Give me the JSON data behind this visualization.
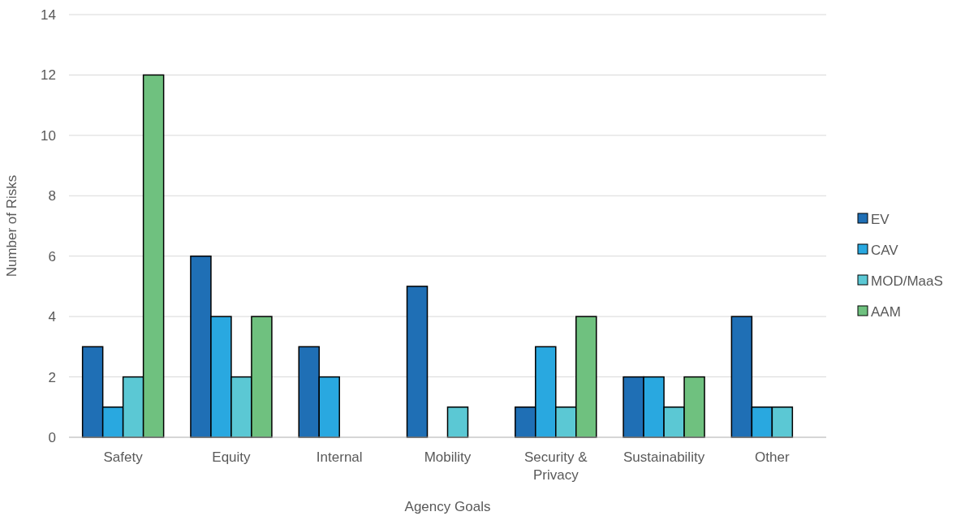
{
  "chart_data": {
    "type": "bar",
    "xlabel": "Agency Goals",
    "ylabel": "Number of Risks",
    "categories": [
      "Safety",
      "Equity",
      "Internal",
      "Mobility",
      "Security & Privacy",
      "Sustainability",
      "Other"
    ],
    "series": [
      {
        "name": "EV",
        "color": "#1f6fb5",
        "values": [
          3,
          6,
          3,
          5,
          1,
          2,
          4
        ]
      },
      {
        "name": "CAV",
        "color": "#29a8e0",
        "values": [
          1,
          4,
          2,
          0,
          3,
          2,
          1
        ]
      },
      {
        "name": "MOD/MaaS",
        "color": "#5bc8d4",
        "values": [
          2,
          2,
          0,
          1,
          1,
          1,
          1
        ]
      },
      {
        "name": "AAM",
        "color": "#6fc17f",
        "values": [
          12,
          4,
          0,
          0,
          4,
          2,
          0
        ]
      }
    ],
    "ylim": [
      0,
      14
    ],
    "yticks": [
      0,
      2,
      4,
      6,
      8,
      10,
      12,
      14
    ],
    "grid": "y",
    "legend": "right"
  }
}
